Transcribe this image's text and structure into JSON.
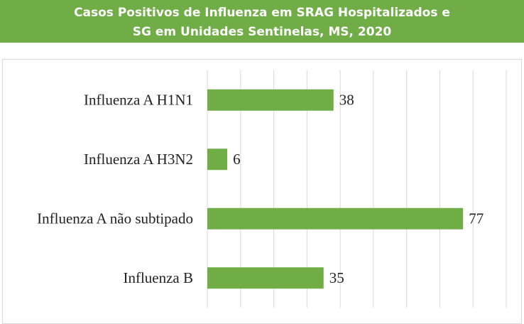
{
  "chart_data": {
    "type": "bar",
    "orientation": "horizontal",
    "title": [
      "Casos Positivos de Influenza em SRAG Hospitalizados e",
      "SG em Unidades Sentinelas, MS, 2020"
    ],
    "categories": [
      "Influenza A H1N1",
      "Influenza A H3N2",
      "Influenza A não subtipado",
      "Influenza B"
    ],
    "values": [
      38,
      6,
      77,
      35
    ],
    "color": "#70ad47",
    "xlim": [
      0,
      90
    ],
    "xticks": [
      0,
      10,
      20,
      30,
      40,
      50,
      60,
      70,
      80,
      90
    ],
    "grid": true
  }
}
